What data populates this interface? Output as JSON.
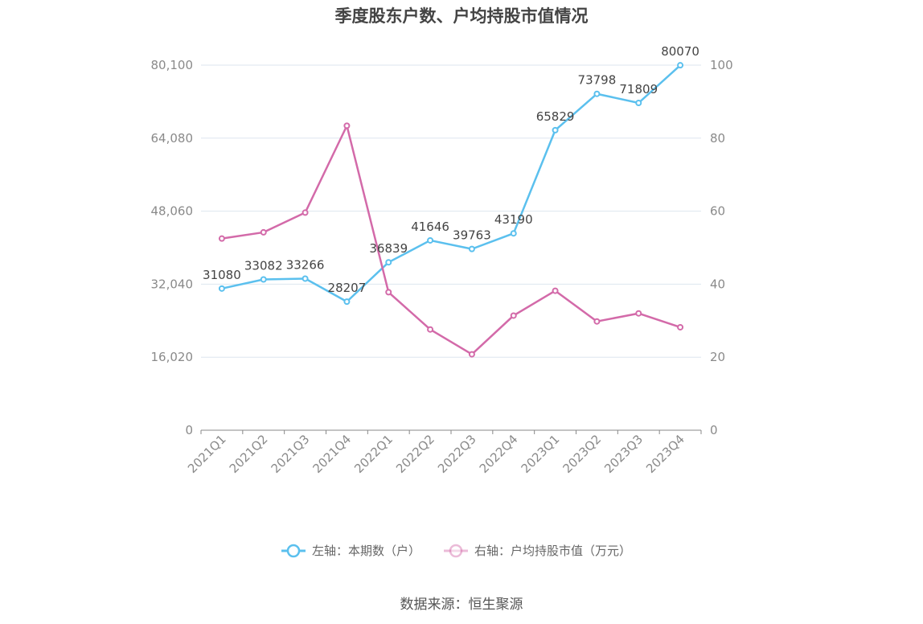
{
  "chart_data": {
    "type": "line",
    "title": "季度股东户数、户均持股市值情况",
    "categories": [
      "2021Q1",
      "2021Q2",
      "2021Q3",
      "2021Q4",
      "2022Q1",
      "2022Q2",
      "2022Q3",
      "2022Q4",
      "2023Q1",
      "2023Q2",
      "2023Q3",
      "2023Q4"
    ],
    "left_axis": {
      "ylim": [
        0,
        80100
      ],
      "ticks": [
        0,
        16020,
        32040,
        48060,
        64080,
        80100
      ],
      "tick_labels": [
        "0",
        "16,020",
        "32,040",
        "48,060",
        "64,080",
        "80,100"
      ]
    },
    "right_axis": {
      "ylim": [
        0,
        100
      ],
      "ticks": [
        0,
        20,
        40,
        60,
        80,
        100
      ],
      "tick_labels": [
        "0",
        "20",
        "40",
        "60",
        "80",
        "100"
      ]
    },
    "series": [
      {
        "name": "左轴：本期数（户）",
        "axis": "left",
        "color": "#5bc0ee",
        "values": [
          31080,
          33082,
          33266,
          28207,
          36839,
          41646,
          39763,
          43190,
          65829,
          73798,
          71809,
          80070
        ],
        "labels": [
          "31080",
          "33082",
          "33266",
          "28207",
          "36839",
          "41646",
          "39763",
          "43190",
          "65829",
          "73798",
          "71809",
          "80070"
        ]
      },
      {
        "name": "右轴：户均持股市值（万元）",
        "axis": "right",
        "color": "#d36aa9",
        "values": [
          52.5,
          54.2,
          59.6,
          83.4,
          37.8,
          27.6,
          20.8,
          31.4,
          38.2,
          29.8,
          32.0,
          28.2
        ]
      }
    ],
    "grid": true,
    "legend_position": "bottom"
  },
  "source_note": "数据来源：恒生聚源"
}
